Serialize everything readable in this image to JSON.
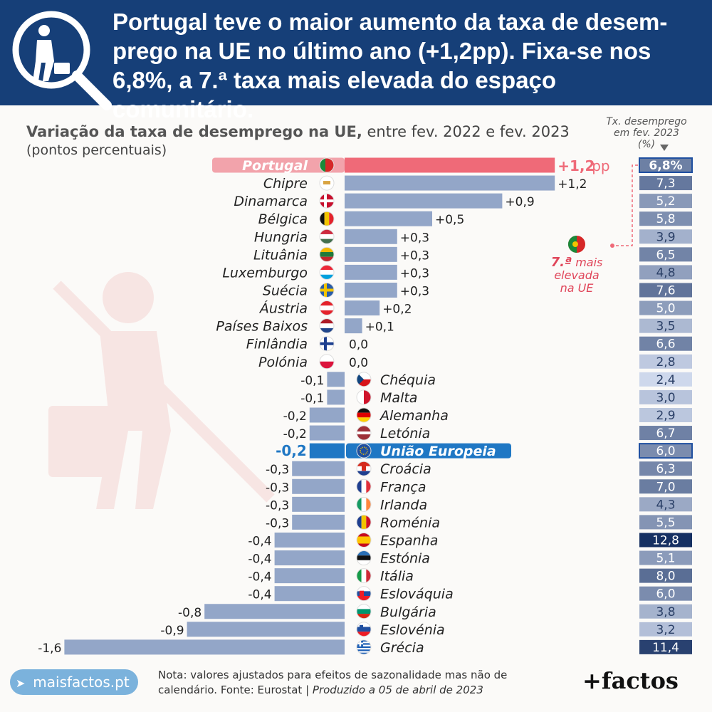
{
  "header": {
    "title": "Portugal teve o maior aumento da taxa de desem-prego na UE no último ano (+1,2pp). Fixa-se nos 6,8%, a 7.ª taxa mais elevada do espaço comunitário."
  },
  "subtitle": {
    "bold": "Variação da taxa de desemprego na UE,",
    "rest": " entre fev. 2022 e fev. 2023",
    "units": "(pontos percentuais)"
  },
  "rate_header": "Tx. desemprego em fev. 2023 (%)",
  "annotation": {
    "rank": "7.ª",
    "text1": "mais",
    "text2": "elevada",
    "text3": "na UE"
  },
  "footer": {
    "brand": "maisfactos.pt",
    "note": "Nota: valores ajustados para efeitos de sazonalidade mas não de calendário. Fonte: Eurostat",
    "produced": "Produzido a 05 de abril de 2023",
    "logo": "+factos"
  },
  "colors": {
    "bar": "#93a6c8",
    "portugal": "#ef6a78",
    "eu": "#1f77c4",
    "header": "#163f78"
  },
  "chart_data": {
    "type": "bar",
    "orientation": "horizontal",
    "categories": [
      "Portugal",
      "Chipre",
      "Dinamarca",
      "Bélgica",
      "Hungria",
      "Lituânia",
      "Luxemburgo",
      "Suécia",
      "Áustria",
      "Países Baixos",
      "Finlândia",
      "Polónia",
      "Chéquia",
      "Malta",
      "Alemanha",
      "Letónia",
      "União Europeia",
      "Croácia",
      "França",
      "Irlanda",
      "Roménia",
      "Espanha",
      "Estónia",
      "Itália",
      "Eslováquia",
      "Bulgária",
      "Eslovénia",
      "Grécia"
    ],
    "labels": [
      "+1,2",
      "+1,2",
      "+0,9",
      "+0,5",
      "+0,3",
      "+0,3",
      "+0,3",
      "+0,3",
      "+0,2",
      "+0,1",
      "0,0",
      "0,0",
      "-0,1",
      "-0,1",
      "-0,2",
      "-0,2",
      "-0,2",
      "-0,3",
      "-0,3",
      "-0,3",
      "-0,3",
      "-0,4",
      "-0,4",
      "-0,4",
      "-0,4",
      "-0,8",
      "-0,9",
      "-1,6"
    ],
    "values": [
      1.2,
      1.2,
      0.9,
      0.5,
      0.3,
      0.3,
      0.3,
      0.3,
      0.2,
      0.1,
      0.0,
      0.0,
      -0.1,
      -0.1,
      -0.2,
      -0.2,
      -0.2,
      -0.3,
      -0.3,
      -0.3,
      -0.3,
      -0.4,
      -0.4,
      -0.4,
      -0.4,
      -0.8,
      -0.9,
      -1.6
    ],
    "unit_suffix": "pp",
    "rates": [
      6.8,
      7.3,
      5.2,
      5.8,
      3.9,
      6.5,
      4.8,
      7.6,
      5.0,
      3.5,
      6.6,
      2.8,
      2.4,
      3.0,
      2.9,
      6.7,
      6.0,
      6.3,
      7.0,
      4.3,
      5.5,
      12.8,
      5.1,
      8.0,
      6.0,
      3.8,
      3.2,
      11.4
    ],
    "rate_labels": [
      "6,8%",
      "7,3",
      "5,2",
      "5,8",
      "3,9",
      "6,5",
      "4,8",
      "7,6",
      "5,0",
      "3,5",
      "6,6",
      "2,8",
      "2,4",
      "3,0",
      "2,9",
      "6,7",
      "6,0",
      "6,3",
      "7,0",
      "4,3",
      "5,5",
      "12,8",
      "5,1",
      "8,0",
      "6,0",
      "3,8",
      "3,2",
      "11,4"
    ],
    "flag_icons": [
      "portugal-flag-icon",
      "cyprus-flag-icon",
      "denmark-flag-icon",
      "belgium-flag-icon",
      "hungary-flag-icon",
      "lithuania-flag-icon",
      "luxembourg-flag-icon",
      "sweden-flag-icon",
      "austria-flag-icon",
      "netherlands-flag-icon",
      "finland-flag-icon",
      "poland-flag-icon",
      "czechia-flag-icon",
      "malta-flag-icon",
      "germany-flag-icon",
      "latvia-flag-icon",
      "eu-flag-icon",
      "croatia-flag-icon",
      "france-flag-icon",
      "ireland-flag-icon",
      "romania-flag-icon",
      "spain-flag-icon",
      "estonia-flag-icon",
      "italy-flag-icon",
      "slovakia-flag-icon",
      "bulgaria-flag-icon",
      "slovenia-flag-icon",
      "greece-flag-icon"
    ],
    "highlight": {
      "Portugal": "portugal",
      "União Europeia": "eu"
    }
  }
}
